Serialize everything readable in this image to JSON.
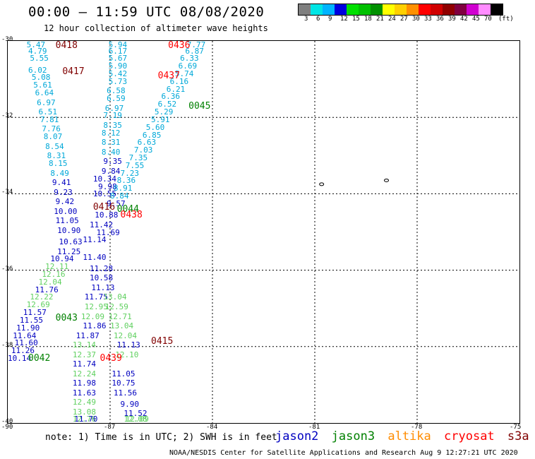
{
  "header": {
    "title": "00:00 – 11:59 UTC 08/08/2020",
    "subtitle": "12 hour collection of altimeter wave heights"
  },
  "colorbar": {
    "colors": [
      "#7f7f7f",
      "#00e5e5",
      "#00b4ff",
      "#0000e0",
      "#00e000",
      "#00c000",
      "#009000",
      "#ffff00",
      "#ffd000",
      "#ff9000",
      "#ff0000",
      "#d00000",
      "#900000",
      "#800040",
      "#d000d0",
      "#ff8cff",
      "#000000"
    ],
    "labels": [
      "3",
      "6",
      "9",
      "12",
      "15",
      "18",
      "21",
      "24",
      "27",
      "30",
      "33",
      "36",
      "39",
      "42",
      "45",
      "70",
      "(ft)"
    ]
  },
  "axes": {
    "lat_labels": [
      "-30",
      "-32",
      "-34",
      "-36",
      "-38",
      "-40"
    ],
    "lon_labels": [
      "-90",
      "-87",
      "-84",
      "-81",
      "-78",
      "-75"
    ]
  },
  "colors": {
    "jason2": "#0000c0",
    "jason3": "#008000",
    "altika": "#ff8c00",
    "cryosat": "#ff0000",
    "s3a": "#800000",
    "light_blue": "#00a8d8",
    "light_green": "#60d060"
  },
  "passes": [
    {
      "label": "0418",
      "sat": "s3a",
      "lon": -88.6,
      "lat": -30.05
    },
    {
      "label": "0417",
      "sat": "s3a",
      "lon": -88.4,
      "lat": -30.8
    },
    {
      "label": "0436",
      "sat": "cryosat",
      "lon": -85.3,
      "lat": -30.05
    },
    {
      "label": "0437",
      "sat": "cryosat",
      "lon": -85.6,
      "lat": -30.9
    },
    {
      "label": "0045",
      "sat": "jason3",
      "lon": -84.7,
      "lat": -31.7
    },
    {
      "label": "0416",
      "sat": "s3a",
      "lon": -87.5,
      "lat": -34.35
    },
    {
      "label": "0044",
      "sat": "jason3",
      "lon": -86.8,
      "lat": -34.4
    },
    {
      "label": "0438",
      "sat": "cryosat",
      "lon": -86.7,
      "lat": -34.55
    },
    {
      "label": "0043",
      "sat": "jason3",
      "lon": -88.6,
      "lat": -37.25
    },
    {
      "label": "0415",
      "sat": "s3a",
      "lon": -85.8,
      "lat": -37.85
    },
    {
      "label": "0042",
      "sat": "jason3",
      "lon": -89.4,
      "lat": -38.3
    },
    {
      "label": "0439",
      "sat": "cryosat",
      "lon": -87.3,
      "lat": -38.3
    }
  ],
  "heights": [
    {
      "v": "5.47",
      "c": "light_blue",
      "lon": -89.45,
      "lat": -30.05
    },
    {
      "v": "4.79",
      "c": "light_blue",
      "lon": -89.4,
      "lat": -30.25
    },
    {
      "v": "5.55",
      "c": "light_blue",
      "lon": -89.35,
      "lat": -30.45
    },
    {
      "v": "6.02",
      "c": "light_blue",
      "lon": -89.4,
      "lat": -30.75
    },
    {
      "v": "5.08",
      "c": "light_blue",
      "lon": -89.3,
      "lat": -30.95
    },
    {
      "v": "5.61",
      "c": "light_blue",
      "lon": -89.25,
      "lat": -31.15
    },
    {
      "v": "6.64",
      "c": "light_blue",
      "lon": -89.2,
      "lat": -31.35
    },
    {
      "v": "6.97",
      "c": "light_blue",
      "lon": -89.15,
      "lat": -31.6
    },
    {
      "v": "6.51",
      "c": "light_blue",
      "lon": -89.1,
      "lat": -31.85
    },
    {
      "v": "7.81",
      "c": "light_blue",
      "lon": -89.05,
      "lat": -32.05
    },
    {
      "v": "7.76",
      "c": "light_blue",
      "lon": -89.0,
      "lat": -32.3
    },
    {
      "v": "8.07",
      "c": "light_blue",
      "lon": -88.95,
      "lat": -32.5
    },
    {
      "v": "8.54",
      "c": "light_blue",
      "lon": -88.9,
      "lat": -32.75
    },
    {
      "v": "8.31",
      "c": "light_blue",
      "lon": -88.85,
      "lat": -33.0
    },
    {
      "v": "8.15",
      "c": "light_blue",
      "lon": -88.8,
      "lat": -33.2
    },
    {
      "v": "8.49",
      "c": "light_blue",
      "lon": -88.75,
      "lat": -33.45
    },
    {
      "v": "9.41",
      "c": "jason2",
      "lon": -88.7,
      "lat": -33.7
    },
    {
      "v": "9.23",
      "c": "jason2",
      "lon": -88.65,
      "lat": -33.95
    },
    {
      "v": "9.42",
      "c": "jason2",
      "lon": -88.6,
      "lat": -34.2
    },
    {
      "v": "10.00",
      "c": "jason2",
      "lon": -88.65,
      "lat": -34.45
    },
    {
      "v": "11.05",
      "c": "jason2",
      "lon": -88.6,
      "lat": -34.7
    },
    {
      "v": "10.90",
      "c": "jason2",
      "lon": -88.55,
      "lat": -34.95
    },
    {
      "v": "10.63",
      "c": "jason2",
      "lon": -88.5,
      "lat": -35.25
    },
    {
      "v": "11.25",
      "c": "jason2",
      "lon": -88.55,
      "lat": -35.5
    },
    {
      "v": "10.94",
      "c": "jason2",
      "lon": -88.75,
      "lat": -35.7
    },
    {
      "v": "12.11",
      "c": "light_green",
      "lon": -88.9,
      "lat": -35.9
    },
    {
      "v": "12.16",
      "c": "light_green",
      "lon": -89.0,
      "lat": -36.1
    },
    {
      "v": "12.04",
      "c": "light_green",
      "lon": -89.1,
      "lat": -36.3
    },
    {
      "v": "11.76",
      "c": "jason2",
      "lon": -89.2,
      "lat": -36.5
    },
    {
      "v": "12.22",
      "c": "light_green",
      "lon": -89.35,
      "lat": -36.7
    },
    {
      "v": "12.69",
      "c": "light_green",
      "lon": -89.45,
      "lat": -36.9
    },
    {
      "v": "11.57",
      "c": "jason2",
      "lon": -89.55,
      "lat": -37.1
    },
    {
      "v": "11.55",
      "c": "jason2",
      "lon": -89.65,
      "lat": -37.3
    },
    {
      "v": "11.90",
      "c": "jason2",
      "lon": -89.75,
      "lat": -37.5
    },
    {
      "v": "11.64",
      "c": "jason2",
      "lon": -89.85,
      "lat": -37.7
    },
    {
      "v": "11.60",
      "c": "jason2",
      "lon": -89.8,
      "lat": -37.9
    },
    {
      "v": "11.26",
      "c": "jason2",
      "lon": -89.9,
      "lat": -38.1
    },
    {
      "v": "10.14",
      "c": "jason2",
      "lon": -90.0,
      "lat": -38.3
    },
    {
      "v": "5.94",
      "c": "light_blue",
      "lon": -87.05,
      "lat": -30.05
    },
    {
      "v": "6.17",
      "c": "light_blue",
      "lon": -87.05,
      "lat": -30.25
    },
    {
      "v": "5.67",
      "c": "light_blue",
      "lon": -87.05,
      "lat": -30.45
    },
    {
      "v": "5.90",
      "c": "light_blue",
      "lon": -87.05,
      "lat": -30.65
    },
    {
      "v": "5.42",
      "c": "light_blue",
      "lon": -87.05,
      "lat": -30.85
    },
    {
      "v": "5.73",
      "c": "light_blue",
      "lon": -87.05,
      "lat": -31.05
    },
    {
      "v": "6.58",
      "c": "light_blue",
      "lon": -87.1,
      "lat": -31.3
    },
    {
      "v": "6.59",
      "c": "light_blue",
      "lon": -87.1,
      "lat": -31.5
    },
    {
      "v": "6.97",
      "c": "light_blue",
      "lon": -87.15,
      "lat": -31.75
    },
    {
      "v": "7.19",
      "c": "light_blue",
      "lon": -87.2,
      "lat": -31.95
    },
    {
      "v": "8.35",
      "c": "light_blue",
      "lon": -87.2,
      "lat": -32.2
    },
    {
      "v": "8.12",
      "c": "light_blue",
      "lon": -87.25,
      "lat": -32.4
    },
    {
      "v": "8.31",
      "c": "light_blue",
      "lon": -87.25,
      "lat": -32.65
    },
    {
      "v": "8.40",
      "c": "light_blue",
      "lon": -87.25,
      "lat": -32.9
    },
    {
      "v": "9.35",
      "c": "jason2",
      "lon": -87.2,
      "lat": -33.15
    },
    {
      "v": "9.84",
      "c": "jason2",
      "lon": -87.25,
      "lat": -33.4
    },
    {
      "v": "10.34",
      "c": "jason2",
      "lon": -87.5,
      "lat": -33.6
    },
    {
      "v": "9.98",
      "c": "jason2",
      "lon": -87.35,
      "lat": -33.8
    },
    {
      "v": "10.55",
      "c": "jason2",
      "lon": -87.5,
      "lat": -34.0
    },
    {
      "v": "10.88",
      "c": "jason2",
      "lon": -87.45,
      "lat": -34.55
    },
    {
      "v": "11.42",
      "c": "jason2",
      "lon": -87.6,
      "lat": -34.8
    },
    {
      "v": "11.69",
      "c": "jason2",
      "lon": -87.4,
      "lat": -35.0
    },
    {
      "v": "11.14",
      "c": "jason2",
      "lon": -87.8,
      "lat": -35.2
    },
    {
      "v": "11.40",
      "c": "jason2",
      "lon": -87.8,
      "lat": -35.65
    },
    {
      "v": "11.28",
      "c": "jason2",
      "lon": -87.6,
      "lat": -35.95
    },
    {
      "v": "10.58",
      "c": "jason2",
      "lon": -87.6,
      "lat": -36.2
    },
    {
      "v": "11.13",
      "c": "jason2",
      "lon": -87.55,
      "lat": -36.45
    },
    {
      "v": "11.75",
      "c": "jason2",
      "lon": -87.75,
      "lat": -36.7
    },
    {
      "v": "12.95",
      "c": "light_green",
      "lon": -87.75,
      "lat": -36.95
    },
    {
      "v": "12.09",
      "c": "light_green",
      "lon": -87.85,
      "lat": -37.2
    },
    {
      "v": "11.86",
      "c": "jason2",
      "lon": -87.8,
      "lat": -37.45
    },
    {
      "v": "11.87",
      "c": "jason2",
      "lon": -88.0,
      "lat": -37.7
    },
    {
      "v": "13.14",
      "c": "light_green",
      "lon": -88.1,
      "lat": -37.95
    },
    {
      "v": "12.37",
      "c": "light_green",
      "lon": -88.1,
      "lat": -38.2
    },
    {
      "v": "11.74",
      "c": "jason2",
      "lon": -88.1,
      "lat": -38.45
    },
    {
      "v": "12.24",
      "c": "light_green",
      "lon": -88.1,
      "lat": -38.7
    },
    {
      "v": "11.98",
      "c": "jason2",
      "lon": -88.1,
      "lat": -38.95
    },
    {
      "v": "11.63",
      "c": "jason2",
      "lon": -88.1,
      "lat": -39.2
    },
    {
      "v": "12.49",
      "c": "light_green",
      "lon": -88.1,
      "lat": -39.45
    },
    {
      "v": "13.08",
      "c": "light_green",
      "lon": -88.1,
      "lat": -39.7
    },
    {
      "v": "12.76",
      "c": "light_green",
      "lon": -88.1,
      "lat": -39.95
    },
    {
      "v": "11.70",
      "c": "jason2",
      "lon": -88.05,
      "lat": -40.2
    },
    {
      "v": "13.04",
      "c": "light_green",
      "lon": -87.2,
      "lat": -36.7
    },
    {
      "v": "12.59",
      "c": "light_green",
      "lon": -87.15,
      "lat": -36.95
    },
    {
      "v": "12.71",
      "c": "light_green",
      "lon": -87.05,
      "lat": -37.2
    },
    {
      "v": "13.04",
      "c": "light_green",
      "lon": -87.0,
      "lat": -37.45
    },
    {
      "v": "12.04",
      "c": "light_green",
      "lon": -86.9,
      "lat": -37.7
    },
    {
      "v": "11.13",
      "c": "jason2",
      "lon": -86.8,
      "lat": -37.95
    },
    {
      "v": "12.10",
      "c": "light_green",
      "lon": -86.85,
      "lat": -38.2
    },
    {
      "v": "11.05",
      "c": "jason2",
      "lon": -86.95,
      "lat": -38.7
    },
    {
      "v": "10.75",
      "c": "jason2",
      "lon": -86.95,
      "lat": -38.95
    },
    {
      "v": "11.56",
      "c": "jason2",
      "lon": -86.9,
      "lat": -39.2
    },
    {
      "v": "9.90",
      "c": "jason2",
      "lon": -86.7,
      "lat": -39.5
    },
    {
      "v": "11.52",
      "c": "jason2",
      "lon": -86.6,
      "lat": -39.75
    },
    {
      "v": "12.08",
      "c": "light_green",
      "lon": -86.6,
      "lat": -40.0
    },
    {
      "v": "12.09",
      "c": "light_green",
      "lon": -86.55,
      "lat": -40.25
    },
    {
      "v": "7.77",
      "c": "light_blue",
      "lon": -84.75,
      "lat": -30.05
    },
    {
      "v": "6.87",
      "c": "light_blue",
      "lon": -84.8,
      "lat": -30.25
    },
    {
      "v": "6.33",
      "c": "light_blue",
      "lon": -84.95,
      "lat": -30.45
    },
    {
      "v": "6.69",
      "c": "light_blue",
      "lon": -85.0,
      "lat": -30.65
    },
    {
      "v": "5.74",
      "c": "light_blue",
      "lon": -85.1,
      "lat": -30.85
    },
    {
      "v": "6.16",
      "c": "light_blue",
      "lon": -85.25,
      "lat": -31.05
    },
    {
      "v": "6.21",
      "c": "light_blue",
      "lon": -85.35,
      "lat": -31.25
    },
    {
      "v": "6.36",
      "c": "light_blue",
      "lon": -85.5,
      "lat": -31.45
    },
    {
      "v": "6.52",
      "c": "light_blue",
      "lon": -85.6,
      "lat": -31.65
    },
    {
      "v": "5.29",
      "c": "light_blue",
      "lon": -85.7,
      "lat": -31.85
    },
    {
      "v": "5.91",
      "c": "light_blue",
      "lon": -85.8,
      "lat": -32.05
    },
    {
      "v": "5.60",
      "c": "light_blue",
      "lon": -85.95,
      "lat": -32.25
    },
    {
      "v": "6.85",
      "c": "light_blue",
      "lon": -86.05,
      "lat": -32.45
    },
    {
      "v": "6.63",
      "c": "light_blue",
      "lon": -86.2,
      "lat": -32.65
    },
    {
      "v": "7.03",
      "c": "light_blue",
      "lon": -86.3,
      "lat": -32.85
    },
    {
      "v": "7.35",
      "c": "light_blue",
      "lon": -86.45,
      "lat": -33.05
    },
    {
      "v": "7.55",
      "c": "light_blue",
      "lon": -86.55,
      "lat": -33.25
    },
    {
      "v": "7.23",
      "c": "light_blue",
      "lon": -86.7,
      "lat": -33.45
    },
    {
      "v": "8.36",
      "c": "light_blue",
      "lon": -86.8,
      "lat": -33.65
    },
    {
      "v": "8.91",
      "c": "light_blue",
      "lon": -86.9,
      "lat": -33.85
    },
    {
      "v": "8.84",
      "c": "light_blue",
      "lon": -87.0,
      "lat": -34.05
    },
    {
      "v": "9.57",
      "c": "jason2",
      "lon": -87.1,
      "lat": -34.25
    }
  ],
  "islands": [
    {
      "lon": -80.8,
      "lat": -33.75
    },
    {
      "lon": -78.9,
      "lat": -33.65
    }
  ],
  "note": "note: 1) Time is in UTC; 2) SWH is in feet",
  "legend": [
    {
      "name": "jason2",
      "color": "#0000c0"
    },
    {
      "name": "jason3",
      "color": "#008000"
    },
    {
      "name": "altika",
      "color": "#ff8c00"
    },
    {
      "name": "cryosat",
      "color": "#ff0000"
    },
    {
      "name": "s3a",
      "color": "#800000"
    }
  ],
  "credit": "NOAA/NESDIS Center for Satellite Applications and Research   Aug  9 12:27:21 UTC 2020"
}
